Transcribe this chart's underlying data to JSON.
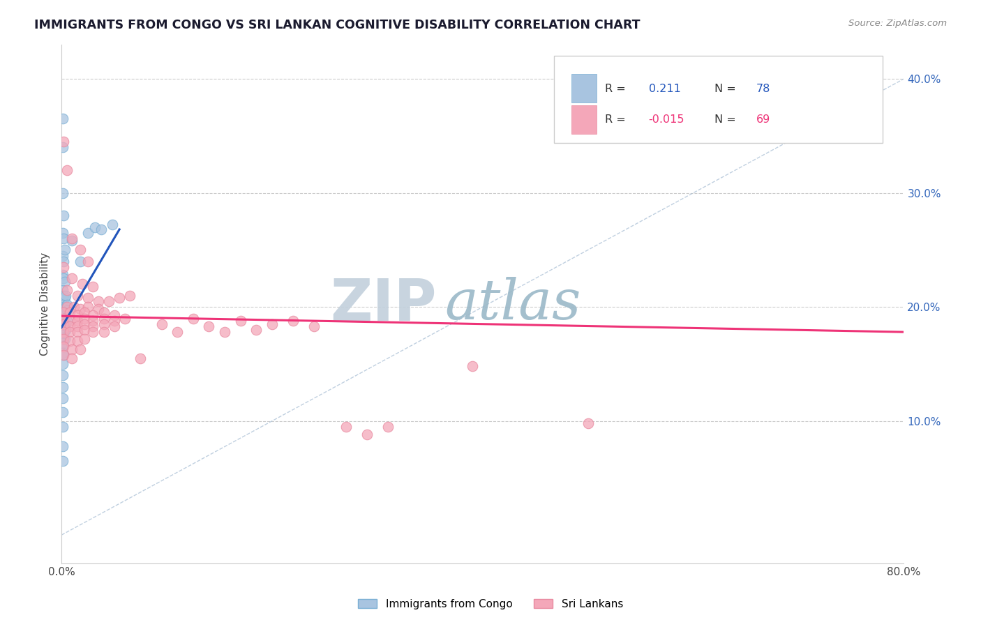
{
  "title": "IMMIGRANTS FROM CONGO VS SRI LANKAN COGNITIVE DISABILITY CORRELATION CHART",
  "source": "Source: ZipAtlas.com",
  "ylabel": "Cognitive Disability",
  "xlim": [
    0,
    0.8
  ],
  "ylim": [
    -0.025,
    0.43
  ],
  "xticks": [
    0.0,
    0.1,
    0.2,
    0.3,
    0.4,
    0.5,
    0.6,
    0.7,
    0.8
  ],
  "yticks": [
    0.1,
    0.2,
    0.3,
    0.4
  ],
  "legend_label1": "Immigrants from Congo",
  "legend_label2": "Sri Lankans",
  "blue_color": "#a8c4e0",
  "blue_edge_color": "#7aafd4",
  "pink_color": "#f4a7b9",
  "pink_edge_color": "#e88aa0",
  "blue_line_color": "#2255bb",
  "pink_line_color": "#ee3377",
  "diag_color": "#b0c4d8",
  "title_color": "#1a1a2e",
  "source_color": "#888888",
  "r_label_color": "#333333",
  "r_blue_color": "#2255bb",
  "r_pink_color": "#ee3377",
  "n_blue_color": "#2255bb",
  "n_pink_color": "#ee3377",
  "zip_color": "#b8ccd8",
  "atlas_color": "#8fb8cc",
  "blue_trend_x": [
    0.0,
    0.055
  ],
  "blue_trend_y": [
    0.182,
    0.268
  ],
  "pink_trend_x": [
    0.0,
    0.8
  ],
  "pink_trend_y": [
    0.192,
    0.178
  ],
  "congo_points": [
    [
      0.001,
      0.365
    ],
    [
      0.001,
      0.34
    ],
    [
      0.001,
      0.3
    ],
    [
      0.002,
      0.28
    ],
    [
      0.001,
      0.265
    ],
    [
      0.002,
      0.26
    ],
    [
      0.001,
      0.245
    ],
    [
      0.002,
      0.24
    ],
    [
      0.003,
      0.25
    ],
    [
      0.001,
      0.228
    ],
    [
      0.002,
      0.225
    ],
    [
      0.003,
      0.222
    ],
    [
      0.001,
      0.215
    ],
    [
      0.002,
      0.21
    ],
    [
      0.003,
      0.208
    ],
    [
      0.004,
      0.21
    ],
    [
      0.001,
      0.202
    ],
    [
      0.002,
      0.2
    ],
    [
      0.003,
      0.198
    ],
    [
      0.004,
      0.2
    ],
    [
      0.005,
      0.202
    ],
    [
      0.001,
      0.195
    ],
    [
      0.002,
      0.193
    ],
    [
      0.003,
      0.192
    ],
    [
      0.004,
      0.195
    ],
    [
      0.005,
      0.197
    ],
    [
      0.001,
      0.188
    ],
    [
      0.002,
      0.186
    ],
    [
      0.003,
      0.185
    ],
    [
      0.004,
      0.186
    ],
    [
      0.005,
      0.188
    ],
    [
      0.001,
      0.182
    ],
    [
      0.002,
      0.18
    ],
    [
      0.003,
      0.179
    ],
    [
      0.004,
      0.18
    ],
    [
      0.001,
      0.175
    ],
    [
      0.002,
      0.173
    ],
    [
      0.003,
      0.172
    ],
    [
      0.001,
      0.168
    ],
    [
      0.002,
      0.166
    ],
    [
      0.001,
      0.16
    ],
    [
      0.002,
      0.158
    ],
    [
      0.001,
      0.15
    ],
    [
      0.001,
      0.14
    ],
    [
      0.001,
      0.13
    ],
    [
      0.001,
      0.12
    ],
    [
      0.001,
      0.108
    ],
    [
      0.001,
      0.095
    ],
    [
      0.01,
      0.258
    ],
    [
      0.018,
      0.24
    ],
    [
      0.025,
      0.265
    ],
    [
      0.032,
      0.27
    ],
    [
      0.038,
      0.268
    ],
    [
      0.048,
      0.272
    ],
    [
      0.001,
      0.078
    ],
    [
      0.001,
      0.065
    ]
  ],
  "srilanka_points": [
    [
      0.002,
      0.345
    ],
    [
      0.005,
      0.32
    ],
    [
      0.01,
      0.26
    ],
    [
      0.018,
      0.25
    ],
    [
      0.025,
      0.24
    ],
    [
      0.002,
      0.235
    ],
    [
      0.01,
      0.225
    ],
    [
      0.02,
      0.22
    ],
    [
      0.03,
      0.218
    ],
    [
      0.005,
      0.215
    ],
    [
      0.015,
      0.21
    ],
    [
      0.025,
      0.208
    ],
    [
      0.035,
      0.205
    ],
    [
      0.045,
      0.205
    ],
    [
      0.055,
      0.208
    ],
    [
      0.065,
      0.21
    ],
    [
      0.005,
      0.2
    ],
    [
      0.012,
      0.2
    ],
    [
      0.018,
      0.198
    ],
    [
      0.025,
      0.2
    ],
    [
      0.035,
      0.198
    ],
    [
      0.002,
      0.195
    ],
    [
      0.008,
      0.195
    ],
    [
      0.015,
      0.193
    ],
    [
      0.022,
      0.195
    ],
    [
      0.03,
      0.193
    ],
    [
      0.04,
      0.195
    ],
    [
      0.05,
      0.193
    ],
    [
      0.002,
      0.19
    ],
    [
      0.008,
      0.188
    ],
    [
      0.015,
      0.188
    ],
    [
      0.022,
      0.19
    ],
    [
      0.03,
      0.188
    ],
    [
      0.04,
      0.19
    ],
    [
      0.05,
      0.188
    ],
    [
      0.06,
      0.19
    ],
    [
      0.002,
      0.185
    ],
    [
      0.008,
      0.183
    ],
    [
      0.015,
      0.183
    ],
    [
      0.022,
      0.185
    ],
    [
      0.03,
      0.183
    ],
    [
      0.04,
      0.185
    ],
    [
      0.05,
      0.183
    ],
    [
      0.002,
      0.178
    ],
    [
      0.008,
      0.178
    ],
    [
      0.015,
      0.178
    ],
    [
      0.022,
      0.18
    ],
    [
      0.03,
      0.178
    ],
    [
      0.04,
      0.178
    ],
    [
      0.002,
      0.172
    ],
    [
      0.008,
      0.17
    ],
    [
      0.015,
      0.17
    ],
    [
      0.022,
      0.172
    ],
    [
      0.002,
      0.165
    ],
    [
      0.01,
      0.163
    ],
    [
      0.018,
      0.163
    ],
    [
      0.002,
      0.158
    ],
    [
      0.01,
      0.155
    ],
    [
      0.075,
      0.155
    ],
    [
      0.095,
      0.185
    ],
    [
      0.11,
      0.178
    ],
    [
      0.125,
      0.19
    ],
    [
      0.14,
      0.183
    ],
    [
      0.155,
      0.178
    ],
    [
      0.17,
      0.188
    ],
    [
      0.185,
      0.18
    ],
    [
      0.2,
      0.185
    ],
    [
      0.22,
      0.188
    ],
    [
      0.24,
      0.183
    ],
    [
      0.39,
      0.148
    ],
    [
      0.27,
      0.095
    ],
    [
      0.29,
      0.088
    ],
    [
      0.31,
      0.095
    ],
    [
      0.5,
      0.098
    ]
  ]
}
